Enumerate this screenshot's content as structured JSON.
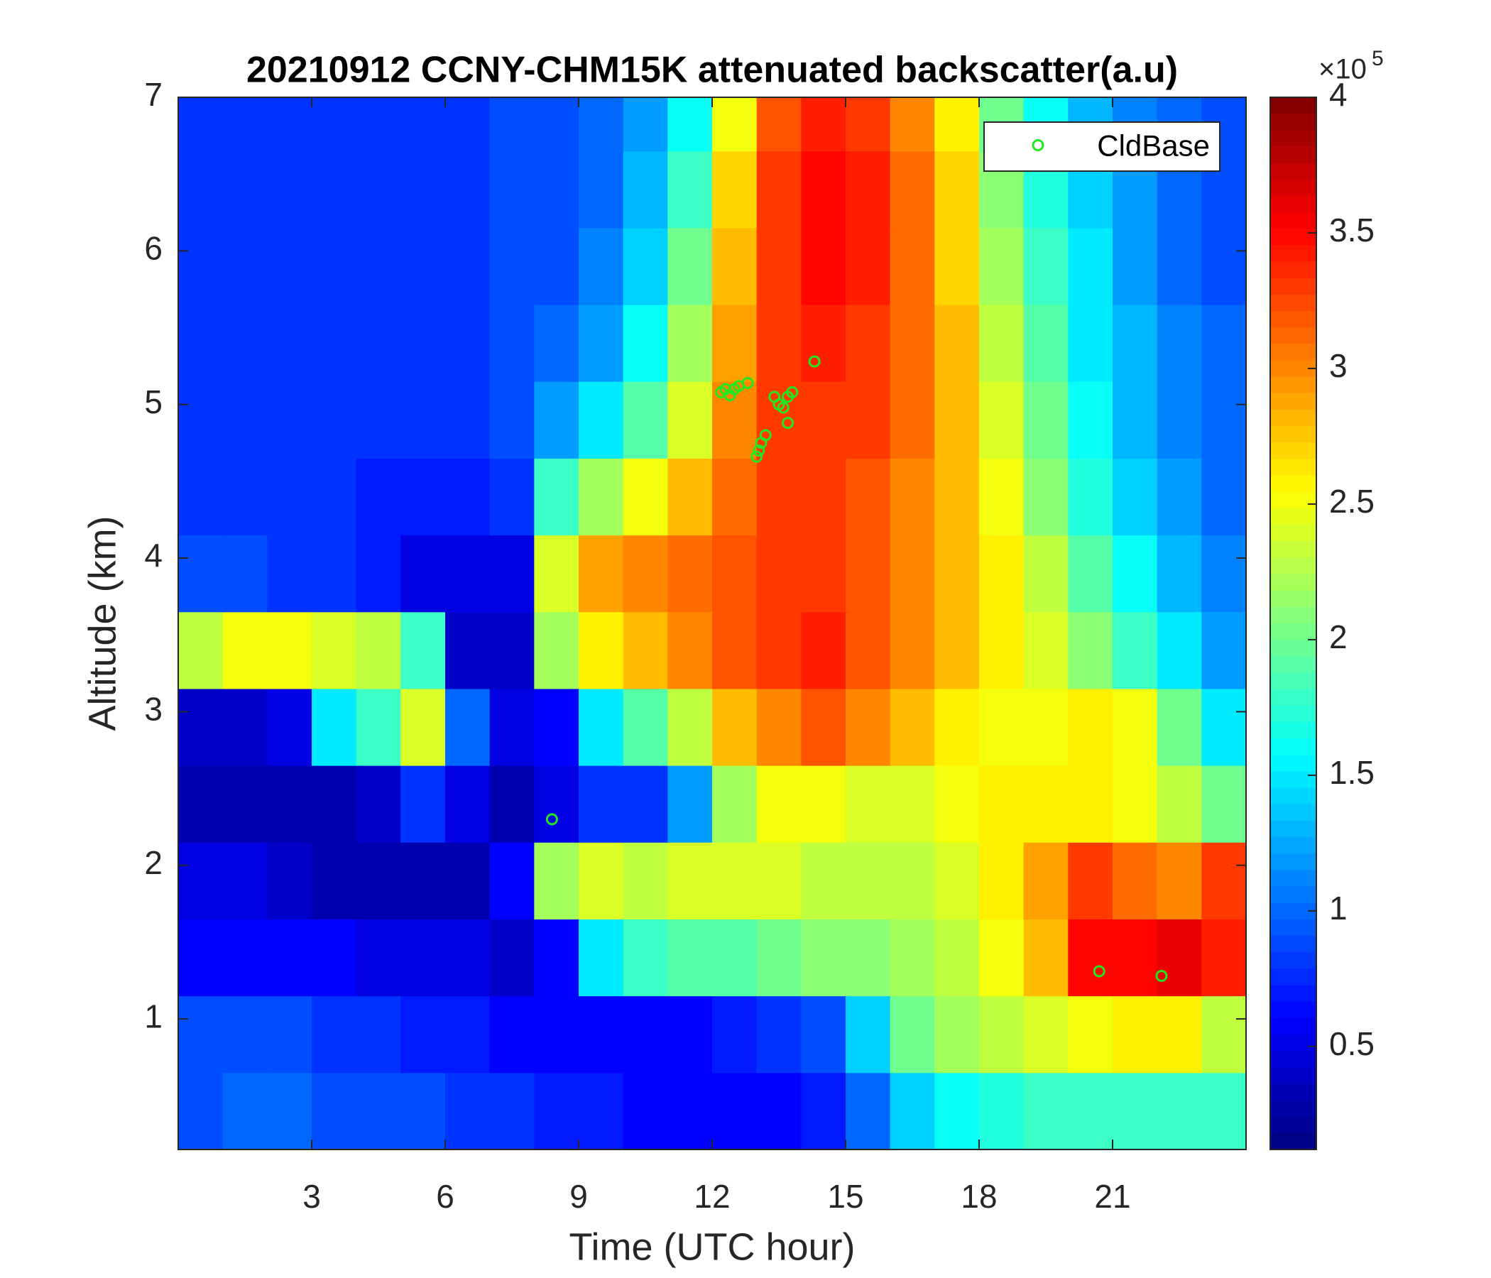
{
  "chart_data": {
    "type": "heatmap",
    "title": "20210912 CCNY-CHM15K attenuated backscatter(a.u)",
    "xlabel": "Time (UTC hour)",
    "ylabel": "Altitude (km)",
    "xlim": [
      0,
      24
    ],
    "ylim": [
      0.15,
      7
    ],
    "xticks": [
      3,
      6,
      9,
      12,
      15,
      18,
      21
    ],
    "yticks": [
      1,
      2,
      3,
      4,
      5,
      6,
      7
    ],
    "colormap": "jet",
    "clim": [
      0.12,
      4
    ],
    "cticks": [
      0.5,
      1,
      1.5,
      2,
      2.5,
      3,
      3.5,
      4
    ],
    "colorbar_scale": "×10",
    "colorbar_exponent": "5",
    "legend": "northeast",
    "heatmap": {
      "x": [
        0.5,
        1.5,
        2.5,
        3.5,
        4.5,
        5.5,
        6.5,
        7.5,
        8.5,
        9.5,
        10.5,
        11.5,
        12.5,
        13.5,
        14.5,
        15.5,
        16.5,
        17.5,
        18.5,
        19.5,
        20.5,
        21.5,
        22.5,
        23.5
      ],
      "y": [
        0.4,
        0.9,
        1.4,
        1.9,
        2.4,
        2.9,
        3.4,
        3.9,
        4.4,
        4.9,
        5.4,
        5.9,
        6.4,
        6.9
      ],
      "z": [
        [
          0.9,
          1.0,
          1.0,
          0.9,
          0.9,
          0.9,
          0.8,
          0.8,
          0.7,
          0.7,
          0.6,
          0.6,
          0.6,
          0.6,
          0.7,
          1.0,
          1.4,
          1.6,
          1.7,
          1.8,
          1.8,
          1.8,
          1.8,
          1.8
        ],
        [
          0.9,
          0.9,
          0.9,
          0.8,
          0.8,
          0.7,
          0.7,
          0.6,
          0.6,
          0.6,
          0.6,
          0.6,
          0.7,
          0.8,
          0.9,
          1.4,
          2.0,
          2.2,
          2.3,
          2.4,
          2.5,
          2.6,
          2.6,
          2.3
        ],
        [
          0.6,
          0.6,
          0.6,
          0.6,
          0.5,
          0.5,
          0.5,
          0.4,
          0.6,
          1.5,
          1.8,
          1.9,
          1.9,
          2.0,
          2.1,
          2.1,
          2.2,
          2.3,
          2.5,
          2.8,
          3.5,
          3.5,
          3.6,
          3.4
        ],
        [
          0.5,
          0.5,
          0.4,
          0.3,
          0.3,
          0.3,
          0.3,
          0.6,
          2.2,
          2.4,
          2.3,
          2.4,
          2.4,
          2.4,
          2.3,
          2.3,
          2.3,
          2.4,
          2.6,
          2.9,
          3.3,
          3.1,
          3.0,
          3.3
        ],
        [
          0.3,
          0.3,
          0.3,
          0.3,
          0.4,
          0.8,
          0.5,
          0.3,
          0.5,
          0.8,
          0.8,
          1.2,
          2.2,
          2.5,
          2.5,
          2.4,
          2.4,
          2.5,
          2.6,
          2.6,
          2.6,
          2.5,
          2.3,
          2.0
        ],
        [
          0.4,
          0.4,
          0.5,
          1.5,
          1.8,
          2.4,
          1.0,
          0.5,
          0.6,
          1.5,
          1.9,
          2.3,
          2.8,
          3.0,
          3.2,
          3.0,
          2.8,
          2.6,
          2.5,
          2.5,
          2.6,
          2.5,
          2.0,
          1.5
        ],
        [
          2.3,
          2.5,
          2.5,
          2.4,
          2.3,
          1.8,
          0.4,
          0.4,
          2.2,
          2.6,
          2.8,
          3.0,
          3.2,
          3.3,
          3.4,
          3.2,
          3.0,
          2.8,
          2.6,
          2.4,
          2.1,
          1.8,
          1.5,
          1.2
        ],
        [
          0.9,
          0.9,
          0.8,
          0.8,
          0.7,
          0.5,
          0.5,
          0.5,
          2.4,
          2.9,
          3.0,
          3.1,
          3.2,
          3.3,
          3.3,
          3.2,
          3.0,
          2.8,
          2.6,
          2.3,
          1.9,
          1.6,
          1.3,
          1.1
        ],
        [
          0.8,
          0.8,
          0.8,
          0.8,
          0.7,
          0.7,
          0.7,
          0.8,
          1.8,
          2.2,
          2.5,
          2.8,
          3.1,
          3.3,
          3.3,
          3.2,
          3.0,
          2.8,
          2.5,
          2.1,
          1.7,
          1.4,
          1.2,
          1.0
        ],
        [
          0.8,
          0.8,
          0.8,
          0.8,
          0.8,
          0.8,
          0.8,
          0.9,
          1.2,
          1.5,
          1.9,
          2.4,
          3.0,
          3.3,
          3.3,
          3.3,
          3.1,
          2.8,
          2.4,
          2.0,
          1.6,
          1.3,
          1.1,
          1.0
        ],
        [
          0.8,
          0.8,
          0.8,
          0.8,
          0.8,
          0.8,
          0.8,
          0.9,
          1.0,
          1.2,
          1.6,
          2.2,
          2.9,
          3.3,
          3.4,
          3.3,
          3.1,
          2.8,
          2.3,
          1.9,
          1.5,
          1.3,
          1.1,
          1.0
        ],
        [
          0.8,
          0.8,
          0.8,
          0.8,
          0.8,
          0.8,
          0.8,
          0.9,
          0.9,
          1.1,
          1.4,
          2.0,
          2.8,
          3.3,
          3.5,
          3.4,
          3.1,
          2.7,
          2.2,
          1.8,
          1.5,
          1.2,
          1.0,
          0.9
        ],
        [
          0.8,
          0.8,
          0.8,
          0.8,
          0.8,
          0.8,
          0.8,
          0.9,
          0.9,
          1.0,
          1.3,
          1.8,
          2.7,
          3.3,
          3.5,
          3.4,
          3.1,
          2.7,
          2.1,
          1.7,
          1.4,
          1.2,
          1.0,
          0.9
        ],
        [
          0.8,
          0.8,
          0.8,
          0.8,
          0.8,
          0.8,
          0.8,
          0.9,
          0.9,
          1.0,
          1.2,
          1.6,
          2.5,
          3.2,
          3.4,
          3.3,
          3.0,
          2.6,
          2.0,
          1.6,
          1.3,
          1.1,
          1.0,
          0.9
        ]
      ]
    },
    "series": [
      {
        "name": "CldBase",
        "color": "#22e622",
        "x": [
          12.2,
          12.3,
          12.4,
          12.5,
          12.6,
          12.8,
          13.0,
          13.05,
          13.1,
          13.2,
          13.4,
          13.5,
          13.6,
          13.7,
          13.8,
          13.7,
          14.3,
          8.4,
          20.7,
          22.1
        ],
        "y": [
          5.08,
          5.1,
          5.06,
          5.1,
          5.12,
          5.14,
          4.66,
          4.7,
          4.75,
          4.8,
          5.05,
          5.0,
          4.98,
          5.05,
          5.08,
          4.88,
          5.28,
          2.3,
          1.31,
          1.28
        ]
      }
    ]
  }
}
